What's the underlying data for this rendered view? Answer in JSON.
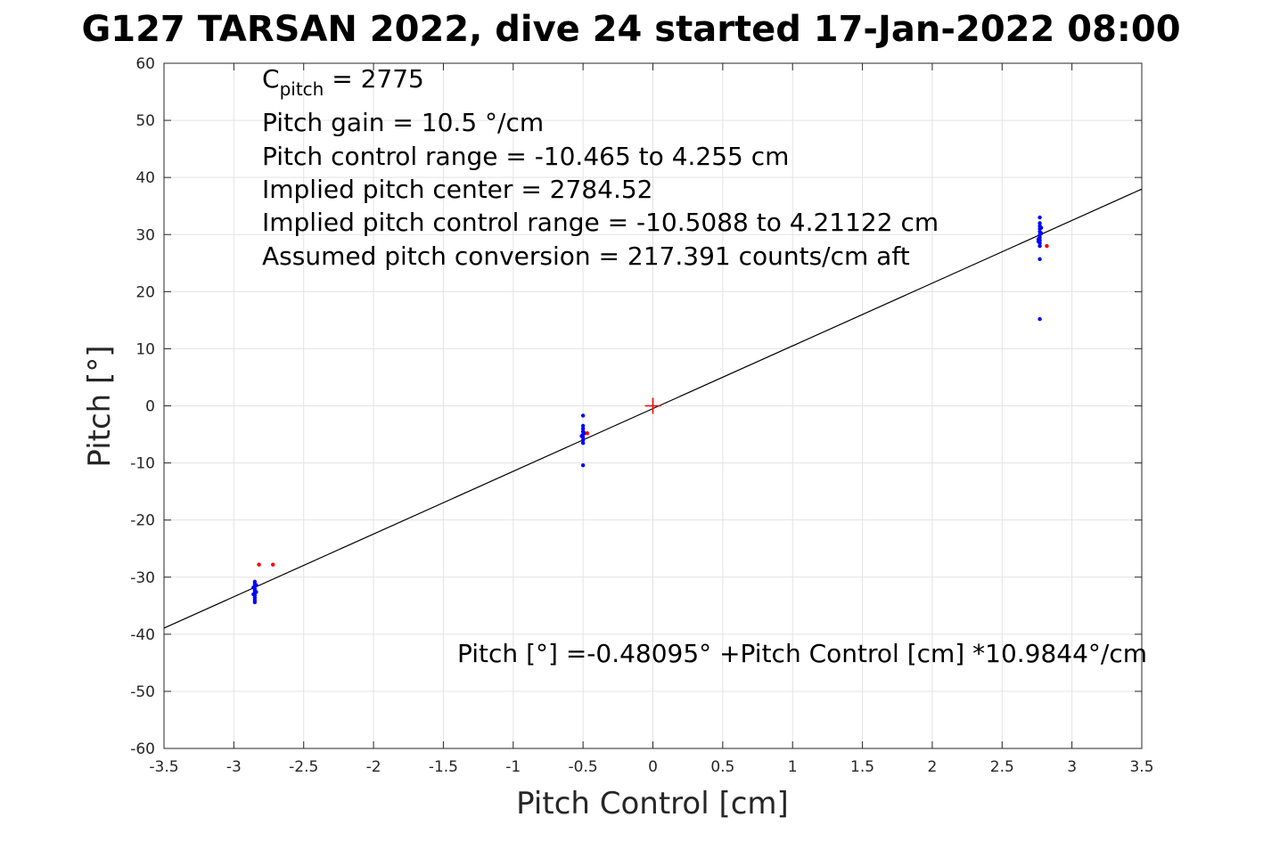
{
  "chart_data": {
    "type": "scatter",
    "title": "G127 TARSAN 2022, dive 24 started 17-Jan-2022 08:00",
    "xlabel": "Pitch Control [cm]",
    "ylabel": "Pitch [°]",
    "xlim": [
      -3.5,
      3.5
    ],
    "ylim": [
      -60,
      60
    ],
    "xticks": [
      -3.5,
      -3,
      -2.5,
      -2,
      -1.5,
      -1,
      -0.5,
      0,
      0.5,
      1,
      1.5,
      2,
      2.5,
      3,
      3.5
    ],
    "xtick_labels": [
      "-3.5",
      "-3",
      "-2.5",
      "-2",
      "-1.5",
      "-1",
      "-0.5",
      "0",
      "0.5",
      "1",
      "1.5",
      "2",
      "2.5",
      "3",
      "3.5"
    ],
    "yticks": [
      -60,
      -50,
      -40,
      -30,
      -20,
      -10,
      0,
      10,
      20,
      30,
      40,
      50,
      60
    ],
    "ytick_labels": [
      "-60",
      "-50",
      "-40",
      "-30",
      "-20",
      "-10",
      "0",
      "10",
      "20",
      "30",
      "40",
      "50",
      "60"
    ],
    "grid": true,
    "series": [
      {
        "color": "#0000ff",
        "points": [
          [
            -2.85,
            -30.8
          ],
          [
            -2.85,
            -31.2
          ],
          [
            -2.85,
            -31.6
          ],
          [
            -2.85,
            -32.0
          ],
          [
            -2.85,
            -32.4
          ],
          [
            -2.85,
            -32.8
          ],
          [
            -2.85,
            -33.2
          ],
          [
            -2.85,
            -33.6
          ],
          [
            -2.85,
            -34.0
          ],
          [
            -2.85,
            -34.4
          ],
          [
            -2.86,
            -31.8
          ],
          [
            -2.84,
            -32.6
          ],
          [
            -2.86,
            -33.0
          ],
          [
            -2.84,
            -31.4
          ],
          [
            -0.5,
            -1.7
          ],
          [
            -0.5,
            -3.5
          ],
          [
            -0.5,
            -4.0
          ],
          [
            -0.5,
            -4.5
          ],
          [
            -0.5,
            -5.0
          ],
          [
            -0.5,
            -5.5
          ],
          [
            -0.5,
            -6.0
          ],
          [
            -0.5,
            -6.5
          ],
          [
            -0.49,
            -4.8
          ],
          [
            -0.51,
            -5.3
          ],
          [
            -0.5,
            -10.4
          ],
          [
            2.77,
            33.0
          ],
          [
            2.77,
            32.0
          ],
          [
            2.77,
            31.5
          ],
          [
            2.77,
            31.0
          ],
          [
            2.77,
            30.5
          ],
          [
            2.77,
            30.0
          ],
          [
            2.77,
            29.5
          ],
          [
            2.77,
            29.0
          ],
          [
            2.77,
            28.5
          ],
          [
            2.77,
            28.0
          ],
          [
            2.78,
            30.2
          ],
          [
            2.76,
            29.2
          ],
          [
            2.78,
            31.2
          ],
          [
            2.76,
            28.8
          ],
          [
            2.77,
            25.7
          ],
          [
            2.77,
            15.2
          ]
        ]
      },
      {
        "color": "#ff0000",
        "points": [
          [
            -2.82,
            -27.8
          ],
          [
            -2.72,
            -27.8
          ],
          [
            -0.47,
            -4.8
          ],
          [
            2.82,
            28.0
          ]
        ]
      }
    ],
    "fit_line": {
      "intercept": -0.48095,
      "slope": 10.9844,
      "color": "#000000"
    },
    "center_marker": {
      "x": 0,
      "y": 0,
      "color": "#ff0000"
    },
    "annotations": {
      "c_pitch": {
        "main": "C",
        "sub": "pitch",
        "rest": " = 2775"
      },
      "lines": [
        "Pitch gain = 10.5 °/cm",
        "Pitch control range = -10.465 to 4.255 cm",
        "Implied pitch center = 2784.52",
        "Implied pitch control range = -10.5088 to 4.21122 cm",
        "Assumed pitch conversion = 217.391 counts/cm aft"
      ],
      "equation": "Pitch [°] =-0.48095° +Pitch Control [cm] *10.9844°/cm"
    }
  }
}
